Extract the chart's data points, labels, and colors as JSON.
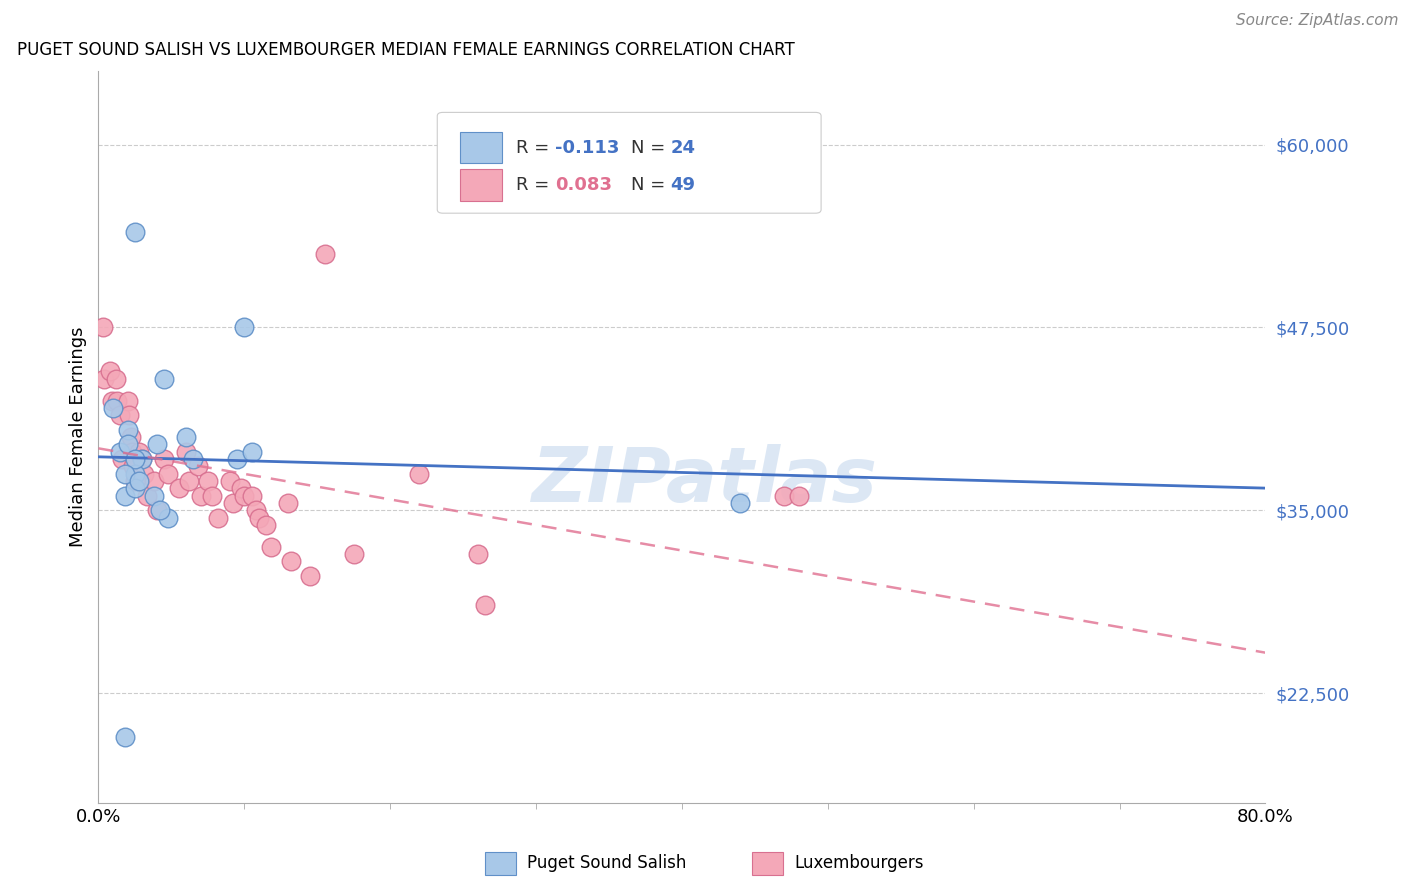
{
  "title": "PUGET SOUND SALISH VS LUXEMBOURGER MEDIAN FEMALE EARNINGS CORRELATION CHART",
  "source": "Source: ZipAtlas.com",
  "xlabel_ticks": [
    "0.0%",
    "80.0%"
  ],
  "xlabel_tick_vals": [
    0.0,
    0.8
  ],
  "ylabel": "Median Female Earnings",
  "ylabel_right": [
    "$60,000",
    "$47,500",
    "$35,000",
    "$22,500"
  ],
  "ylabel_right_vals": [
    60000,
    47500,
    35000,
    22500
  ],
  "y_min": 15000,
  "y_max": 65000,
  "x_min": 0.0,
  "x_max": 0.8,
  "legend_r_blue": "-0.113",
  "legend_n_blue": "24",
  "legend_r_pink": "0.083",
  "legend_n_pink": "49",
  "blue_scatter_color": "#a8c8e8",
  "pink_scatter_color": "#f4a8b8",
  "blue_edge_color": "#6090c8",
  "pink_edge_color": "#d87090",
  "blue_line_color": "#4472c4",
  "pink_line_color": "#e07090",
  "watermark_color": "#c5d8ee",
  "watermark": "ZIPatlas",
  "blue_scatter_x": [
    0.025,
    0.01,
    0.045,
    0.02,
    0.015,
    0.02,
    0.03,
    0.04,
    0.025,
    0.018,
    0.025,
    0.06,
    0.065,
    0.095,
    0.105,
    0.038,
    0.048,
    0.042,
    0.1,
    0.018,
    0.44,
    0.025,
    0.018,
    0.028
  ],
  "blue_scatter_y": [
    54000,
    42000,
    44000,
    40500,
    39000,
    39500,
    38500,
    39500,
    37500,
    36000,
    36500,
    40000,
    38500,
    38500,
    39000,
    36000,
    34500,
    35000,
    47500,
    19500,
    35500,
    38500,
    37500,
    37000
  ],
  "pink_scatter_x": [
    0.003,
    0.004,
    0.008,
    0.009,
    0.012,
    0.013,
    0.015,
    0.016,
    0.02,
    0.021,
    0.022,
    0.023,
    0.024,
    0.025,
    0.028,
    0.03,
    0.031,
    0.033,
    0.038,
    0.04,
    0.045,
    0.048,
    0.055,
    0.06,
    0.062,
    0.068,
    0.07,
    0.075,
    0.078,
    0.082,
    0.09,
    0.092,
    0.098,
    0.1,
    0.105,
    0.108,
    0.11,
    0.115,
    0.118,
    0.13,
    0.132,
    0.145,
    0.155,
    0.175,
    0.22,
    0.26,
    0.265,
    0.47,
    0.48
  ],
  "pink_scatter_y": [
    47500,
    44000,
    44500,
    42500,
    44000,
    42500,
    41500,
    38500,
    42500,
    41500,
    40000,
    39000,
    38000,
    37000,
    39000,
    38500,
    37500,
    36000,
    37000,
    35000,
    38500,
    37500,
    36500,
    39000,
    37000,
    38000,
    36000,
    37000,
    36000,
    34500,
    37000,
    35500,
    36500,
    36000,
    36000,
    35000,
    34500,
    34000,
    32500,
    35500,
    31500,
    30500,
    52500,
    32000,
    37500,
    32000,
    28500,
    36000,
    36000
  ]
}
